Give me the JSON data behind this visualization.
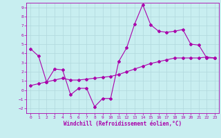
{
  "xlabel": "Windchill (Refroidissement éolien,°C)",
  "bg_color": "#c8eef0",
  "line_color": "#aa00aa",
  "grid_color": "#b0d8dc",
  "xlim": [
    -0.5,
    23.5
  ],
  "ylim": [
    -2.5,
    9.5
  ],
  "yticks": [
    -2,
    -1,
    0,
    1,
    2,
    3,
    4,
    5,
    6,
    7,
    8,
    9
  ],
  "xticks": [
    0,
    1,
    2,
    3,
    4,
    5,
    6,
    7,
    8,
    9,
    10,
    11,
    12,
    13,
    14,
    15,
    16,
    17,
    18,
    19,
    20,
    21,
    22,
    23
  ],
  "series1_x": [
    0,
    1,
    2,
    3,
    4,
    5,
    6,
    7,
    8,
    9,
    10,
    11,
    12,
    13,
    14,
    15,
    16,
    17,
    18,
    19,
    20,
    21,
    22,
    23
  ],
  "series1_y": [
    4.5,
    3.7,
    0.9,
    2.3,
    2.2,
    -0.5,
    0.2,
    0.2,
    -1.8,
    -0.9,
    -0.9,
    3.1,
    4.6,
    7.2,
    9.3,
    7.1,
    6.4,
    6.3,
    6.4,
    6.6,
    5.0,
    4.9,
    3.5,
    3.5
  ],
  "series2_x": [
    0,
    1,
    2,
    3,
    4,
    5,
    6,
    7,
    8,
    9,
    10,
    11,
    12,
    13,
    14,
    15,
    16,
    17,
    18,
    19,
    20,
    21,
    22,
    23
  ],
  "series2_y": [
    0.5,
    0.7,
    0.9,
    1.1,
    1.3,
    1.1,
    1.1,
    1.2,
    1.3,
    1.4,
    1.5,
    1.7,
    2.0,
    2.3,
    2.6,
    2.9,
    3.1,
    3.3,
    3.5,
    3.5,
    3.5,
    3.5,
    3.6,
    3.5
  ],
  "tick_fontsize": 4.5,
  "xlabel_fontsize": 5.5,
  "marker_size": 2.0,
  "linewidth": 0.8
}
